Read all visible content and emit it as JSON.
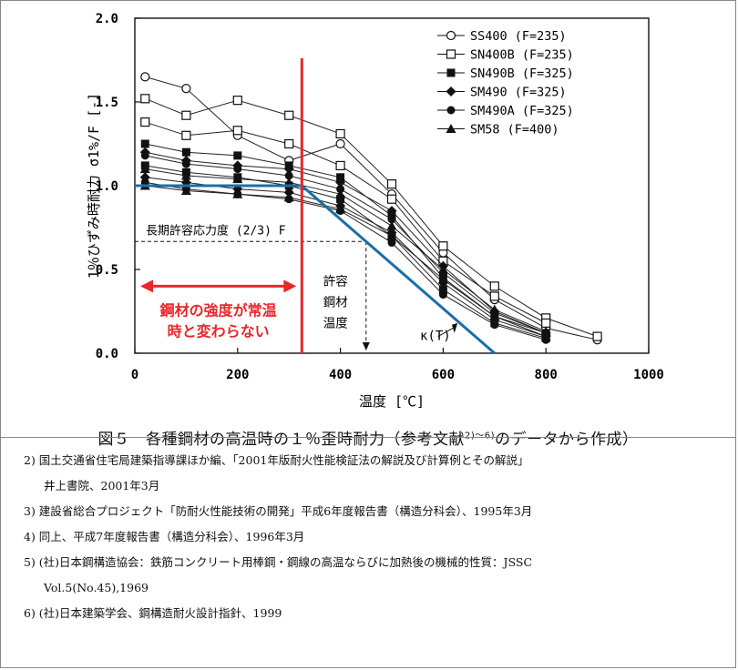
{
  "chart_data": {
    "type": "line",
    "ylabel": "1％ひずみ時耐力 σ1%/F [-]",
    "xlabel": "温度 [℃]",
    "xlim": [
      0,
      1000
    ],
    "ylim": [
      0,
      2.0
    ],
    "xticks": [
      "0",
      "200",
      "400",
      "600",
      "800",
      "1000"
    ],
    "yticks": [
      "0.0",
      "0.5",
      "1.0",
      "1.5",
      "2.0"
    ],
    "grid": false,
    "legend_position": "top-right",
    "legend": [
      {
        "label": "SS400 (F=235)",
        "marker": "circle-open"
      },
      {
        "label": "SN400B (F=235)",
        "marker": "square-open"
      },
      {
        "label": "SN490B (F=325)",
        "marker": "square-filled"
      },
      {
        "label": "SM490 (F=325)",
        "marker": "diamond-filled"
      },
      {
        "label": "SM490A (F=325)",
        "marker": "circle-filled"
      },
      {
        "label": "SM58 (F=400)",
        "marker": "triangle-filled"
      }
    ],
    "series": [
      {
        "name": "SS400 (F=235)",
        "marker": "circle-open",
        "x": [
          20,
          100,
          200,
          300,
          400,
          500,
          600,
          700,
          800,
          900
        ],
        "y": [
          1.65,
          1.58,
          1.3,
          1.15,
          1.25,
          0.95,
          0.6,
          0.32,
          0.15,
          0.08
        ]
      },
      {
        "name": "SN400B (F=235)",
        "marker": "square-open",
        "x": [
          20,
          100,
          200,
          300,
          400,
          500,
          600,
          700,
          800,
          900
        ],
        "y": [
          1.52,
          1.42,
          1.51,
          1.42,
          1.31,
          1.01,
          0.64,
          0.4,
          0.21,
          0.1
        ]
      },
      {
        "name": "SN400B (F=235)",
        "marker": "square-open",
        "x": [
          20,
          100,
          200,
          300,
          400,
          500,
          600,
          700,
          800
        ],
        "y": [
          1.38,
          1.3,
          1.33,
          1.25,
          1.12,
          0.92,
          0.55,
          0.34,
          0.18
        ]
      },
      {
        "name": "SN490B (F=325)",
        "marker": "square-filled",
        "x": [
          20,
          100,
          200,
          300,
          400,
          500,
          600,
          700,
          800
        ],
        "y": [
          1.25,
          1.2,
          1.18,
          1.12,
          1.05,
          0.82,
          0.45,
          0.22,
          0.12
        ]
      },
      {
        "name": "SN490B (F=325)",
        "marker": "square-filled",
        "x": [
          20,
          100,
          200,
          300,
          400,
          500,
          600,
          700,
          800
        ],
        "y": [
          1.12,
          1.08,
          1.05,
          1.0,
          0.92,
          0.7,
          0.38,
          0.18,
          0.09
        ]
      },
      {
        "name": "SM490 (F=325)",
        "marker": "diamond-filled",
        "x": [
          20,
          100,
          200,
          300,
          400,
          500,
          600,
          700,
          800
        ],
        "y": [
          1.2,
          1.15,
          1.12,
          1.1,
          1.02,
          0.85,
          0.52,
          0.25,
          0.12
        ]
      },
      {
        "name": "SM490 (F=325)",
        "marker": "diamond-filled",
        "x": [
          20,
          100,
          200,
          300,
          400,
          500,
          600,
          700,
          800
        ],
        "y": [
          1.05,
          1.02,
          0.98,
          0.96,
          0.88,
          0.72,
          0.42,
          0.2,
          0.1
        ]
      },
      {
        "name": "SM490A (F=325)",
        "marker": "circle-filled",
        "x": [
          20,
          100,
          200,
          300,
          400,
          500,
          600,
          700,
          800
        ],
        "y": [
          1.18,
          1.13,
          1.1,
          1.06,
          0.98,
          0.8,
          0.48,
          0.24,
          0.12
        ]
      },
      {
        "name": "SM490A (F=325)",
        "marker": "circle-filled",
        "x": [
          20,
          100,
          200,
          300,
          400,
          500,
          600,
          700,
          800
        ],
        "y": [
          1.02,
          0.98,
          0.95,
          0.92,
          0.85,
          0.66,
          0.35,
          0.17,
          0.08
        ]
      },
      {
        "name": "SM58 (F=400)",
        "marker": "triangle-filled",
        "x": [
          20,
          100,
          200,
          300,
          400,
          500,
          600,
          700,
          800
        ],
        "y": [
          1.0,
          0.97,
          0.95,
          0.93,
          0.86,
          0.7,
          0.44,
          0.22,
          0.1
        ]
      },
      {
        "name": "SM58 (F=400)",
        "marker": "triangle-filled",
        "x": [
          20,
          100,
          200,
          300,
          400,
          500,
          600,
          700,
          800
        ],
        "y": [
          1.1,
          1.06,
          1.04,
          1.02,
          0.95,
          0.76,
          0.5,
          0.26,
          0.13
        ]
      }
    ],
    "kappa_curve": {
      "label": "κ(T)",
      "color": "#1a6fa8",
      "x": [
        0,
        325,
        700
      ],
      "y": [
        1.0,
        1.0,
        0.0
      ]
    },
    "red_line": {
      "x": 325,
      "color": "#e8262b"
    },
    "long_term_allowable": {
      "label": "長期許容応力度 (2/3) F",
      "y": 0.667,
      "x_end": 450
    },
    "allowable_temp": {
      "label_lines": [
        "許容",
        "鋼材",
        "温度"
      ],
      "x": 450
    },
    "annotation": {
      "lines": [
        "鋼材の強度が常温",
        "時と変わらない"
      ],
      "color": "#e8262b"
    }
  },
  "caption": {
    "main": "図５　各種鋼材の高温時の１％歪時耐力（参考文献",
    "sup": "2)～6)",
    "tail": "のデータから作成）"
  },
  "references": [
    "2) 国土交通省住宅局建築指導課ほか編、「2001年版耐火性能検証法の解説及び計算例とその解説」",
    "井上書院、2001年3月",
    "3) 建設省総合プロジェクト「防耐火性能技術の開発」平成6年度報告書（構造分科会）、1995年3月",
    "4) 同上、平成7年度報告書（構造分科会）、1996年3月",
    "5) (社)日本鋼構造協会：鉄筋コンクリート用棒鋼・鋼線の高温ならびに加熱後の機械的性質：JSSC",
    "Vol.5(No.45),1969",
    "6) (社)日本建築学会、鋼構造耐火設計指針、1999"
  ]
}
